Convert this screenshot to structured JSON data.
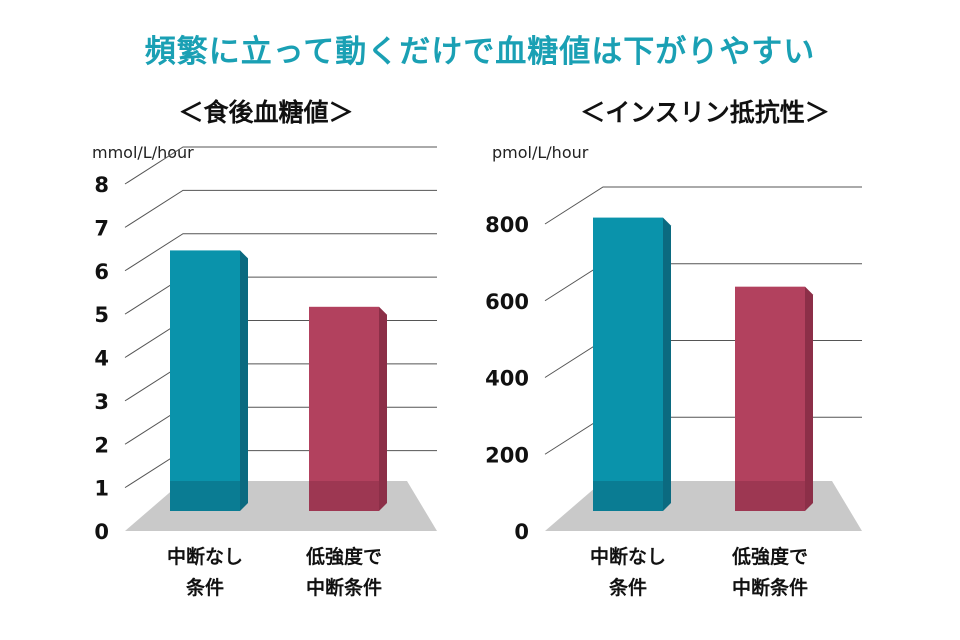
{
  "title": "頻繁に立って動くだけで血糖値は下がりやすい",
  "colors": {
    "title": "#1aa0b4",
    "no_break_front": "#0a93ab",
    "no_break_side": "#0b6a80",
    "low_intensity_front": "#b2415e",
    "low_intensity_side": "#8c2f48",
    "floor": "#c9c9c9",
    "grid": "#555555"
  },
  "chart_data": [
    {
      "type": "bar",
      "title": "＜食後血糖値＞",
      "ylabel": "mmol/L/hour",
      "xlabel": "",
      "ylim": [
        0,
        8
      ],
      "yticks": [
        "0",
        "1",
        "2",
        "3",
        "4",
        "5",
        "6",
        "7",
        "8"
      ],
      "categories": [
        [
          "中断なし",
          "条件"
        ],
        [
          "低強度で",
          "中断条件"
        ]
      ],
      "values": [
        6.1,
        4.8
      ],
      "grid": true
    },
    {
      "type": "bar",
      "title": "＜インスリン抵抗性＞",
      "ylabel": "pmol/L/hour",
      "xlabel": "",
      "ylim": [
        0,
        800
      ],
      "yticks": [
        "0",
        "200",
        "400",
        "600",
        "800"
      ],
      "categories": [
        [
          "中断なし",
          "条件"
        ],
        [
          "低強度で",
          "中断条件"
        ]
      ],
      "values": [
        775,
        595
      ],
      "grid": true
    }
  ]
}
